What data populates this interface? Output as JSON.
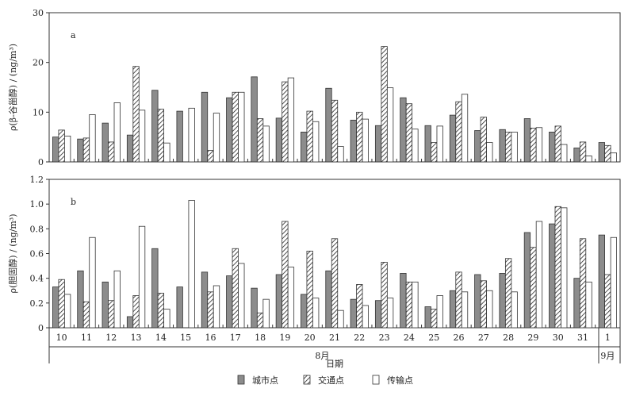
{
  "chart_data": [
    {
      "type": "bar",
      "panel_label": "a",
      "ylabel": "ρ(β-谷甾醇) / (ng/m³)",
      "ylim": [
        0,
        30
      ],
      "yticks": [
        0,
        10,
        20,
        30
      ],
      "categories": [
        "10",
        "11",
        "12",
        "13",
        "14",
        "15",
        "16",
        "17",
        "18",
        "19",
        "20",
        "21",
        "22",
        "23",
        "24",
        "25",
        "26",
        "27",
        "28",
        "29",
        "30",
        "31",
        "1"
      ],
      "series": [
        {
          "name": "城市点",
          "values": [
            5.0,
            4.6,
            7.8,
            5.4,
            14.4,
            10.2,
            14.0,
            12.9,
            17.1,
            8.8,
            6.0,
            14.8,
            8.4,
            7.3,
            12.9,
            7.3,
            9.4,
            6.3,
            6.5,
            8.7,
            6.0,
            2.8,
            3.9
          ]
        },
        {
          "name": "交通点",
          "values": [
            6.4,
            4.8,
            4.0,
            19.2,
            10.6,
            0,
            2.3,
            14.0,
            8.7,
            16.1,
            10.2,
            12.4,
            10.0,
            23.2,
            11.7,
            3.9,
            12.1,
            9.0,
            6.0,
            6.8,
            7.2,
            4.0,
            3.3
          ]
        },
        {
          "name": "传输点",
          "values": [
            5.2,
            9.5,
            11.9,
            10.4,
            3.8,
            10.8,
            9.8,
            14.0,
            7.2,
            16.9,
            8.1,
            3.1,
            8.6,
            14.9,
            6.6,
            7.2,
            13.6,
            3.9,
            6.0,
            6.9,
            3.5,
            1.2,
            1.8
          ]
        }
      ]
    },
    {
      "type": "bar",
      "panel_label": "b",
      "ylabel": "ρ(胆固醇) / (ng/m³)",
      "ylim": [
        0,
        1.2
      ],
      "yticks": [
        "0",
        "0.2",
        "0.4",
        "0.6",
        "0.8",
        "1.0",
        "1.2"
      ],
      "categories": [
        "10",
        "11",
        "12",
        "13",
        "14",
        "15",
        "16",
        "17",
        "18",
        "19",
        "20",
        "21",
        "22",
        "23",
        "24",
        "25",
        "26",
        "27",
        "28",
        "29",
        "30",
        "31",
        "1"
      ],
      "series": [
        {
          "name": "城市点",
          "values": [
            0.33,
            0.46,
            0.37,
            0.09,
            0.64,
            0.33,
            0.45,
            0.42,
            0.32,
            0.43,
            0.27,
            0.46,
            0.23,
            0.22,
            0.44,
            0.17,
            0.3,
            0.43,
            0.44,
            0.77,
            0.84,
            0.4,
            0.75
          ]
        },
        {
          "name": "交通点",
          "values": [
            0.39,
            0.21,
            0.22,
            0.26,
            0.28,
            0,
            0.29,
            0.64,
            0.12,
            0.86,
            0.62,
            0.72,
            0.35,
            0.53,
            0.37,
            0.15,
            0.45,
            0.38,
            0.56,
            0.65,
            0.98,
            0.72,
            0.43
          ]
        },
        {
          "name": "传输点",
          "values": [
            0.27,
            0.73,
            0.46,
            0.82,
            0.15,
            1.03,
            0.34,
            0.52,
            0.23,
            0.49,
            0.24,
            0.14,
            0.18,
            0.24,
            0.37,
            0.26,
            0.29,
            0.3,
            0.29,
            0.86,
            0.97,
            0.37,
            0.73
          ]
        }
      ]
    }
  ],
  "x_axis": {
    "month_groups": [
      {
        "label": "8月",
        "from": 0,
        "to": 21
      },
      {
        "label": "9月",
        "from": 22,
        "to": 22
      }
    ],
    "xlabel": "日期"
  },
  "legend": {
    "placement": "bottom-center",
    "items": [
      {
        "label": "城市点",
        "style": "gray-fill"
      },
      {
        "label": "交通点",
        "style": "diagonal-hatch"
      },
      {
        "label": "传输点",
        "style": "white-fill"
      }
    ]
  },
  "colors": {
    "gray_fill": "#8c8c8c",
    "outline": "#333333",
    "background": "#ffffff"
  }
}
